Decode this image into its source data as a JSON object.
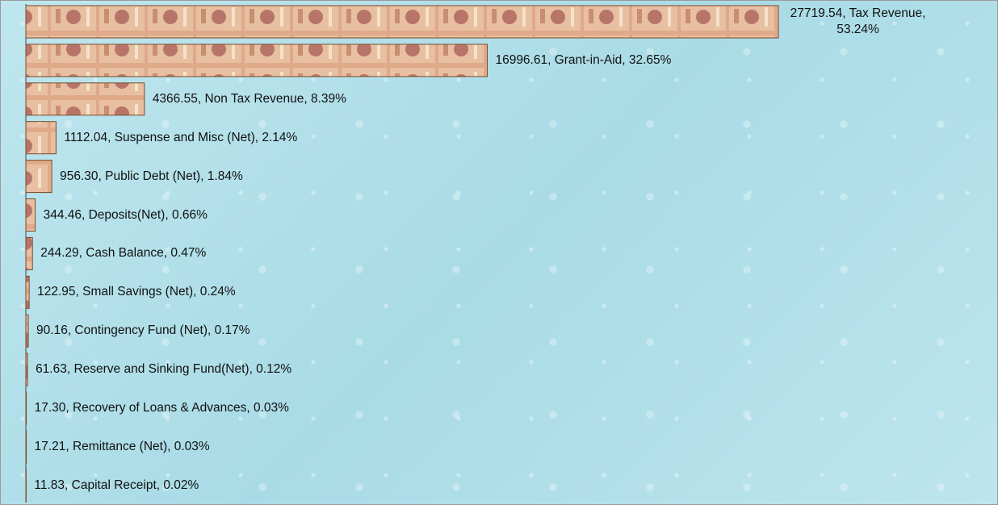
{
  "chart_data": {
    "type": "bar",
    "orientation": "horizontal",
    "values": [
      27719.54,
      16996.61,
      4366.55,
      1112.04,
      956.3,
      344.46,
      244.29,
      122.95,
      90.16,
      61.63,
      17.3,
      17.21,
      11.83
    ],
    "value_labels": [
      "27719.54, Tax Revenue, 53.24%",
      "16996.61, Grant-in-Aid, 32.65%",
      "4366.55, Non Tax Revenue, 8.39%",
      "1112.04, Suspense and Misc (Net), 2.14%",
      "956.30, Public Debt (Net), 1.84%",
      "344.46, Deposits(Net), 0.66%",
      "244.29, Cash Balance, 0.47%",
      "122.95, Small Savings (Net), 0.24%",
      "90.16, Contingency Fund (Net), 0.17%",
      "61.63, Reserve and Sinking Fund(Net), 0.12%",
      "17.30, Recovery of Loans & Advances, 0.03%",
      "17.21, Remittance (Net), 0.03%",
      "11.83, Capital Receipt, 0.02%"
    ],
    "color": "#d9a07a"
  }
}
